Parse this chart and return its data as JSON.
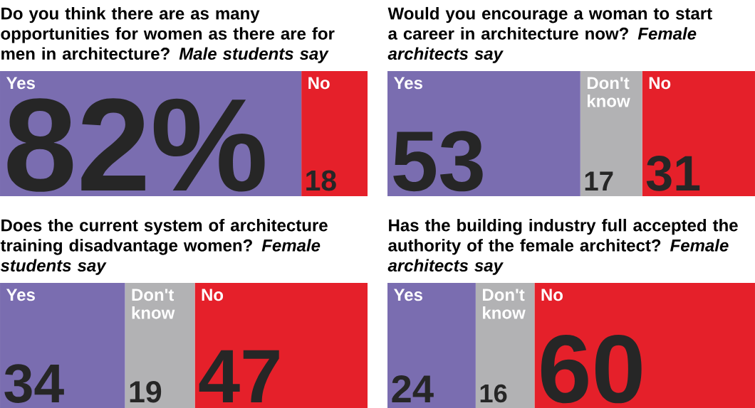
{
  "chart_data": [
    {
      "type": "bar",
      "orientation": "horizontal",
      "stacked": true,
      "title": "Do you think there are as many opportunities for women as there are for men in architecture? *Male students say*",
      "categories": [
        null
      ],
      "series": [
        {
          "name": "Yes",
          "color": "#7a6db0",
          "values": [
            82
          ],
          "value_labels": [
            "82%"
          ]
        },
        {
          "name": "No",
          "color": "#e5202a",
          "values": [
            18
          ],
          "value_labels": [
            "18"
          ]
        }
      ]
    },
    {
      "type": "bar",
      "orientation": "horizontal",
      "stacked": true,
      "title": "Would you encourage a woman to start a career in architecture now? *Female architects say*",
      "categories": [
        null
      ],
      "series": [
        {
          "name": "Yes",
          "color": "#7a6db0",
          "values": [
            53
          ],
          "value_labels": [
            "53"
          ]
        },
        {
          "name": "Don't know",
          "color": "#b2b2b4",
          "values": [
            17
          ],
          "value_labels": [
            "17"
          ]
        },
        {
          "name": "No",
          "color": "#e5202a",
          "values": [
            31
          ],
          "value_labels": [
            "31"
          ]
        }
      ]
    },
    {
      "type": "bar",
      "orientation": "horizontal",
      "stacked": true,
      "title": "Does the current system of architecture training disadvantage women? *Female students say*",
      "categories": [
        null
      ],
      "series": [
        {
          "name": "Yes",
          "color": "#7a6db0",
          "values": [
            34
          ],
          "value_labels": [
            "34"
          ]
        },
        {
          "name": "Don't know",
          "color": "#b2b2b4",
          "values": [
            19
          ],
          "value_labels": [
            "19"
          ]
        },
        {
          "name": "No",
          "color": "#e5202a",
          "values": [
            47
          ],
          "value_labels": [
            "47"
          ]
        }
      ]
    },
    {
      "type": "bar",
      "orientation": "horizontal",
      "stacked": true,
      "title": "Has the building industry full accepted the authority of the female architect? *Female architects say*",
      "categories": [
        null
      ],
      "series": [
        {
          "name": "Yes",
          "color": "#7a6db0",
          "values": [
            24
          ],
          "value_labels": [
            "24"
          ]
        },
        {
          "name": "Don't know",
          "color": "#b2b2b4",
          "values": [
            16
          ],
          "value_labels": [
            "16"
          ]
        },
        {
          "name": "No",
          "color": "#e5202a",
          "values": [
            60
          ],
          "value_labels": [
            "60"
          ]
        }
      ]
    }
  ]
}
